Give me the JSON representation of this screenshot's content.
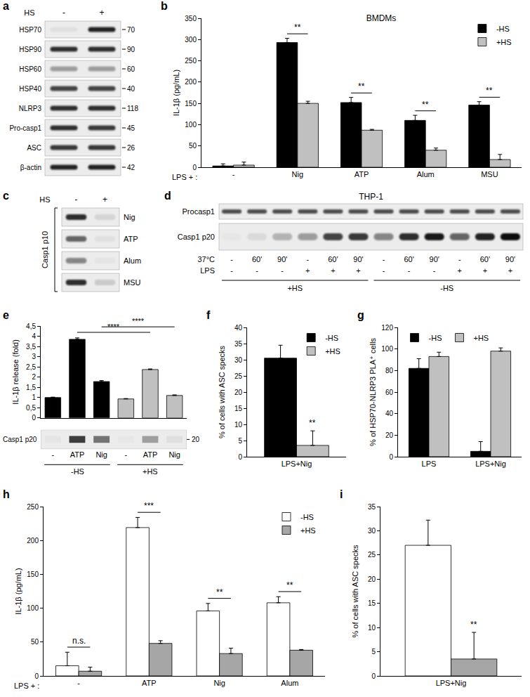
{
  "chart_data": [
    {
      "panel": "b",
      "type": "bar",
      "title": "BMDMs",
      "ylabel": "IL-1β (pg/mL)",
      "xlabel": "LPS + :",
      "categories": [
        "-",
        "Nig",
        "ATP",
        "Alum",
        "MSU"
      ],
      "series": [
        {
          "name": "-HS",
          "color": "#000000",
          "values": [
            3,
            293,
            152,
            110,
            146
          ],
          "error": [
            5,
            10,
            12,
            12,
            8
          ]
        },
        {
          "name": "+HS",
          "color": "#c0c0c0",
          "values": [
            5,
            150,
            87,
            40,
            18
          ],
          "error": [
            7,
            5,
            2,
            5,
            12
          ]
        }
      ],
      "significance": [
        null,
        "**",
        "**",
        "**",
        "**"
      ],
      "ylim": [
        0,
        350
      ],
      "yticks": [
        0,
        50,
        100,
        150,
        200,
        250,
        300,
        350
      ],
      "grid": false,
      "legend": "top right"
    },
    {
      "panel": "e",
      "type": "bar",
      "ylabel": "IL-1β release (fold)",
      "categories": [
        "-",
        "ATP",
        "Nig",
        "-",
        "ATP",
        "Nig"
      ],
      "values": [
        1.0,
        3.85,
        1.78,
        0.93,
        2.37,
        1.1
      ],
      "error": [
        0.02,
        0.07,
        0.05,
        0.02,
        0.03,
        0.03
      ],
      "colors": [
        "#000000",
        "#000000",
        "#000000",
        "#c0c0c0",
        "#c0c0c0",
        "#c0c0c0"
      ],
      "comparisons": [
        {
          "pair": [
            1,
            4
          ],
          "text": "****"
        },
        {
          "pair": [
            2,
            5
          ],
          "text": "****"
        }
      ],
      "ylim": [
        0,
        4.5
      ],
      "yticks": [
        0,
        {
          "value": 0.5,
          "label": "0,5"
        },
        1,
        {
          "value": 1.5,
          "label": "1,5"
        },
        2,
        {
          "value": 2.5,
          "label": "2,5"
        },
        3,
        {
          "value": 3.5,
          "label": "3,5"
        },
        4,
        {
          "value": 4.5,
          "label": "4,5"
        }
      ],
      "grid": false,
      "blot": {
        "label": "Casp1 p20",
        "mw": 20,
        "groups": [
          "-HS",
          "+HS"
        ],
        "bands": [
          0.03,
          0.8,
          0.55,
          0.02,
          0.35,
          0.06
        ]
      }
    },
    {
      "panel": "f",
      "type": "bar",
      "ylabel": "% of cells with ASC specks",
      "categories": [
        "LPS+Nig"
      ],
      "series": [
        {
          "name": "-HS",
          "color": "#000000",
          "values": [
            30.5
          ],
          "error": [
            4
          ]
        },
        {
          "name": "+HS",
          "color": "#c0c0c0",
          "values": [
            3.5
          ],
          "error": [
            4.5
          ]
        }
      ],
      "significance": [
        "**"
      ],
      "ylim": [
        0,
        40
      ],
      "yticks": [
        0,
        5,
        10,
        15,
        20,
        25,
        30,
        35,
        40
      ],
      "grid": false,
      "legend": "top right"
    },
    {
      "panel": "g",
      "type": "bar",
      "ylabel": "% of HSP70-NLRP3 PLA⁺ cells",
      "categories": [
        "LPS",
        "LPS+Nig"
      ],
      "series": [
        {
          "name": "-HS",
          "color": "#000000",
          "values": [
            82,
            5
          ],
          "error": [
            9,
            9
          ]
        },
        {
          "name": "+HS",
          "color": "#c0c0c0",
          "values": [
            93,
            98
          ],
          "error": [
            4,
            3
          ]
        }
      ],
      "ylim": [
        0,
        120
      ],
      "yticks": [
        0,
        20,
        40,
        60,
        80,
        100,
        120
      ],
      "grid": false,
      "legend": "top left"
    },
    {
      "panel": "h",
      "type": "bar",
      "ylabel": "IL-1β (pg/mL)",
      "xlabel": "LPS + :",
      "categories": [
        "-",
        "ATP",
        "Nig",
        "Alum"
      ],
      "series": [
        {
          "name": "-HS",
          "color": "#ffffff",
          "values": [
            15,
            219,
            96,
            108
          ],
          "error": [
            20,
            15,
            11,
            9
          ]
        },
        {
          "name": "+HS",
          "color": "#a6a6a6",
          "values": [
            7,
            48,
            33,
            38
          ],
          "error": [
            6,
            4,
            8,
            1
          ]
        }
      ],
      "significance": [
        "n.s.",
        "***",
        "**",
        "**"
      ],
      "ylim": [
        0,
        250
      ],
      "yticks": [
        0,
        50,
        100,
        150,
        200,
        250
      ],
      "grid": false,
      "legend": "top right"
    },
    {
      "panel": "i",
      "type": "bar",
      "ylabel": "% of cells with ASC specks",
      "categories": [
        "LPS+Nig"
      ],
      "series": [
        {
          "name": "-HS",
          "color": "#ffffff",
          "values": [
            27
          ],
          "error": [
            5.2
          ]
        },
        {
          "name": "+HS",
          "color": "#a6a6a6",
          "values": [
            3.5
          ],
          "error": [
            5.5
          ]
        }
      ],
      "significance": [
        "**"
      ],
      "ylim": [
        0,
        35
      ],
      "yticks": [
        0,
        5,
        10,
        15,
        20,
        25,
        30,
        35
      ],
      "grid": false
    }
  ],
  "blots": {
    "a": {
      "panel": "a",
      "header": "HS",
      "lanes": [
        "-",
        "+"
      ],
      "rows": [
        {
          "label": "HSP70",
          "mw": 70,
          "bands": [
            0.05,
            0.9
          ]
        },
        {
          "label": "HSP90",
          "mw": 90,
          "bands": [
            0.85,
            0.85
          ]
        },
        {
          "label": "HSP60",
          "mw": 60,
          "bands": [
            0.35,
            0.35
          ]
        },
        {
          "label": "HSP40",
          "mw": 40,
          "bands": [
            0.75,
            0.75
          ]
        },
        {
          "label": "NLRP3",
          "mw": 118,
          "bands": [
            0.85,
            0.85
          ]
        },
        {
          "label": "Pro-casp1",
          "mw": 45,
          "bands": [
            0.85,
            0.8
          ]
        },
        {
          "label": "ASC",
          "mw": 26,
          "bands": [
            0.8,
            0.8
          ]
        },
        {
          "label": "β-actin",
          "mw": 42,
          "bands": [
            0.9,
            0.9
          ]
        }
      ]
    },
    "c": {
      "panel": "c",
      "header": "HS",
      "lanes": [
        "-",
        "+"
      ],
      "side_label": "Casp1 p10",
      "rows": [
        {
          "label": "Nig",
          "bands": [
            0.85,
            0.1
          ]
        },
        {
          "label": "ATP",
          "bands": [
            0.6,
            0.05
          ]
        },
        {
          "label": "Alum",
          "bands": [
            0.45,
            0.03
          ]
        },
        {
          "label": "MSU",
          "bands": [
            0.85,
            0.15
          ]
        }
      ]
    },
    "d": {
      "panel": "d",
      "title": "THP-1",
      "rows": [
        {
          "label": "Procasp1",
          "bands": [
            0.7,
            0.7,
            0.7,
            0.7,
            0.7,
            0.7,
            0.7,
            0.7,
            0.7,
            0.7,
            0.7,
            0.7
          ]
        },
        {
          "label": "Casp1 p20",
          "bands": [
            0.02,
            0.08,
            0.25,
            0.35,
            0.75,
            0.8,
            0.45,
            0.85,
            0.95,
            0.6,
            0.9,
            1
          ]
        }
      ],
      "conditions": [
        {
          "label": "37°C",
          "values": [
            "-",
            "60'",
            "90'",
            "-",
            "60'",
            "90'",
            "-",
            "60'",
            "90'",
            "-",
            "60'",
            "90'"
          ]
        },
        {
          "label": "LPS",
          "values": [
            "-",
            "-",
            "-",
            "+",
            "+",
            "+",
            "-",
            "-",
            "-",
            "+",
            "+",
            "+"
          ]
        }
      ],
      "groups": [
        "+HS",
        "-HS"
      ]
    }
  }
}
